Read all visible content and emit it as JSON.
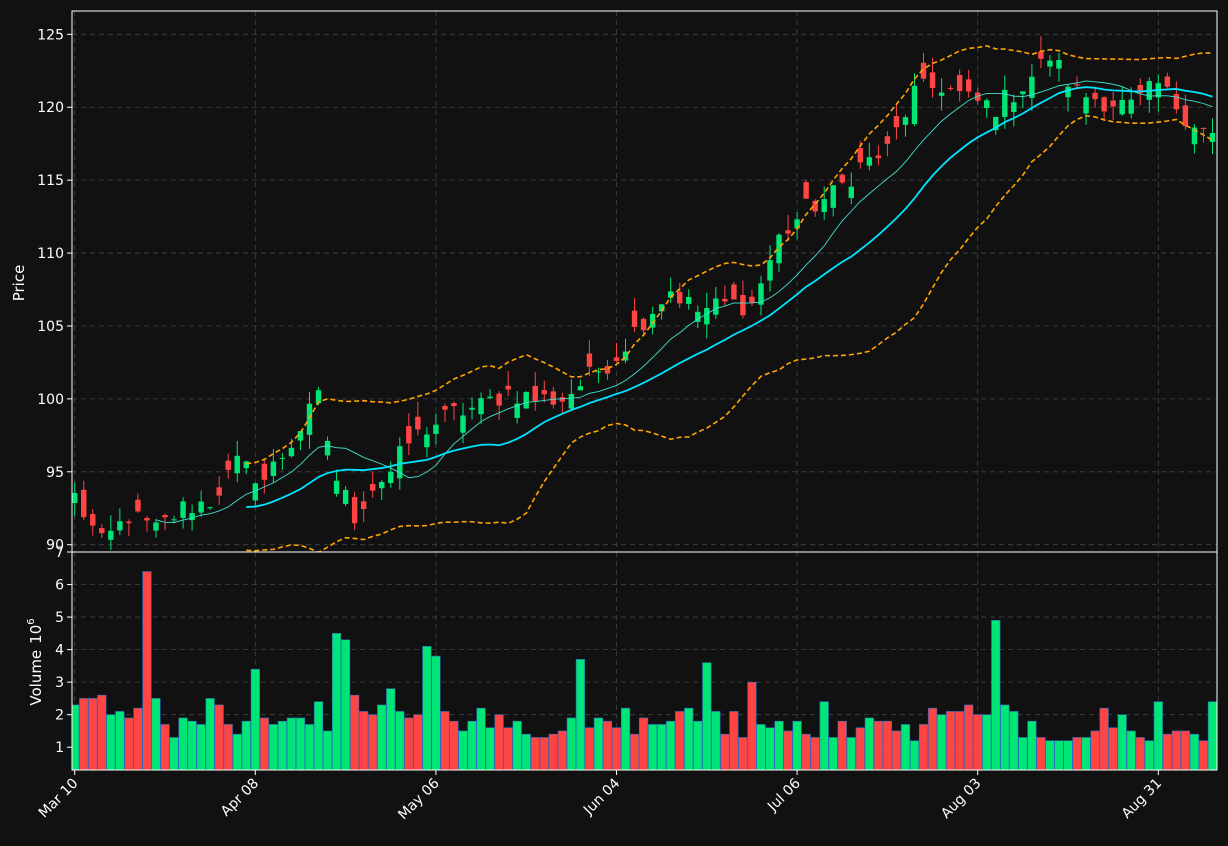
{
  "chart_data": {
    "type": "candlestick",
    "colors": {
      "background": "#111111",
      "up": "#00e676",
      "down": "#ff4444",
      "sma_fast": "#40e0d0",
      "sma_slow": "#00e5ff",
      "bollinger": "#ffa500",
      "grid": "#444444",
      "axis": "#ffffff"
    },
    "price_panel": {
      "ylabel": "Price",
      "ylim": [
        89.5,
        126.6
      ],
      "yticks": [
        90,
        95,
        100,
        105,
        110,
        115,
        120,
        125
      ],
      "grid": true
    },
    "volume_panel": {
      "ylabel": "Volume",
      "ylabel_exponent": "6",
      "ylim": [
        0.3,
        7.0
      ],
      "yticks": [
        1,
        2,
        3,
        4,
        5,
        6,
        7
      ],
      "grid": true
    },
    "x_axis": {
      "xlim": [
        -0.3,
        126.5
      ],
      "ticks": [
        {
          "index": 0,
          "label": "Mar 10"
        },
        {
          "index": 20,
          "label": "Apr 08"
        },
        {
          "index": 40,
          "label": "May 06"
        },
        {
          "index": 60,
          "label": "Jun 04"
        },
        {
          "index": 80,
          "label": "Jul 06"
        },
        {
          "index": 100,
          "label": "Aug 03"
        },
        {
          "index": 120,
          "label": "Aug 31"
        }
      ]
    },
    "close_anchors": [
      [
        0,
        93.3
      ],
      [
        3,
        90.0
      ],
      [
        6,
        92.0
      ],
      [
        9,
        91.0
      ],
      [
        12,
        92.5
      ],
      [
        15,
        93.0
      ],
      [
        18,
        95.5
      ],
      [
        21,
        94.5
      ],
      [
        24,
        97.0
      ],
      [
        27,
        100.0
      ],
      [
        29,
        94.5
      ],
      [
        31,
        92.0
      ],
      [
        33,
        94.0
      ],
      [
        35,
        95.0
      ],
      [
        37,
        97.0
      ],
      [
        39,
        98.0
      ],
      [
        42,
        99.0
      ],
      [
        45,
        99.5
      ],
      [
        48,
        100.5
      ],
      [
        51,
        100.0
      ],
      [
        54,
        100.0
      ],
      [
        57,
        101.5
      ],
      [
        60,
        103.0
      ],
      [
        63,
        105.5
      ],
      [
        66,
        107.5
      ],
      [
        69,
        106.0
      ],
      [
        72,
        106.5
      ],
      [
        75,
        106.5
      ],
      [
        78,
        111.0
      ],
      [
        81,
        113.0
      ],
      [
        84,
        114.0
      ],
      [
        87,
        116.0
      ],
      [
        90,
        117.0
      ],
      [
        93,
        121.0
      ],
      [
        96,
        121.5
      ],
      [
        99,
        120.5
      ],
      [
        102,
        120.0
      ],
      [
        105,
        121.5
      ],
      [
        108,
        123.5
      ],
      [
        111,
        121.0
      ],
      [
        114,
        120.5
      ],
      [
        117,
        120.0
      ],
      [
        120,
        121.5
      ],
      [
        123,
        119.5
      ],
      [
        126,
        118.0
      ]
    ],
    "volume_millions": [
      2.3,
      2.5,
      2.5,
      2.6,
      2.0,
      2.1,
      1.9,
      2.2,
      6.4,
      2.5,
      1.7,
      1.3,
      1.9,
      1.8,
      1.7,
      2.5,
      2.3,
      1.7,
      1.4,
      1.8,
      3.4,
      1.9,
      1.7,
      1.8,
      1.9,
      1.9,
      1.7,
      2.4,
      1.5,
      4.5,
      4.3,
      2.6,
      2.1,
      2.0,
      2.3,
      2.8,
      2.1,
      1.9,
      2.0,
      4.1,
      3.8,
      2.1,
      1.8,
      1.5,
      1.8,
      2.2,
      1.6,
      2.0,
      1.6,
      1.8,
      1.4,
      1.3,
      1.3,
      1.4,
      1.5,
      1.9,
      3.7,
      1.6,
      1.9,
      1.8,
      1.6,
      2.2,
      1.4,
      1.9,
      1.7,
      1.7,
      1.8,
      2.1,
      2.2,
      1.8,
      3.6,
      2.1,
      1.4,
      2.1,
      1.3,
      3.0,
      1.7,
      1.6,
      1.8,
      1.5,
      1.8,
      1.4,
      1.3,
      2.4,
      1.3,
      1.8,
      1.3,
      1.6,
      1.9,
      1.8,
      1.8,
      1.5,
      1.7,
      1.2,
      1.7,
      2.2,
      2.0,
      2.1,
      2.1,
      2.3,
      2.0,
      2.0,
      4.9,
      2.3,
      2.1,
      1.3,
      1.8,
      1.3,
      1.2,
      1.2,
      1.2,
      1.3,
      1.3,
      1.5,
      2.2,
      1.6,
      2.0,
      1.5,
      1.3,
      1.2,
      2.4,
      1.4,
      1.5,
      1.5,
      1.4,
      1.2,
      2.4
    ],
    "sma_fast_window": 10,
    "sma_slow_window": 20,
    "bollinger_window": 20,
    "bollinger_k": 2
  }
}
